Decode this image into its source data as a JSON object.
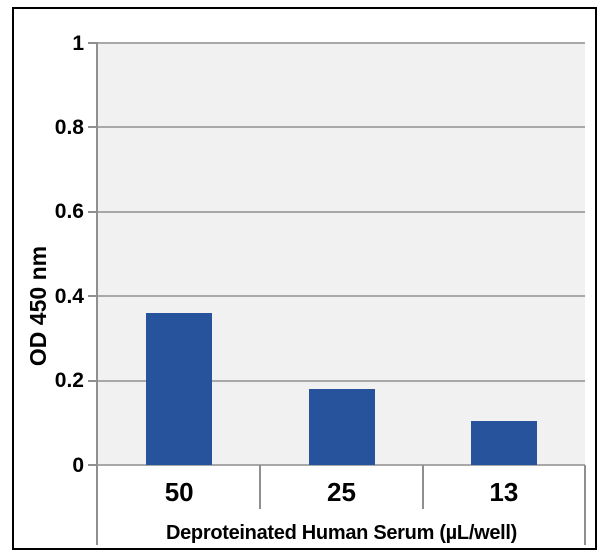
{
  "chart_data": {
    "type": "bar",
    "title": "",
    "categories": [
      "50",
      "25",
      "13"
    ],
    "values": [
      0.36,
      0.18,
      0.105
    ],
    "xlabel": "Deproteinated Human Serum (µL/well)",
    "ylabel": "OD 450 nm",
    "ylim": [
      0,
      1
    ],
    "ytick_interval": 0.2,
    "yticks": [
      "0",
      "0.2",
      "0.4",
      "0.6",
      "0.8",
      "1"
    ],
    "grid": true,
    "legend": false,
    "plot_background": "#f1f1f1"
  },
  "colors": {
    "bar_fill": "#26539c",
    "plot_bg": "#f1f1f1",
    "gridline": "#a8a8a8",
    "axis_line": "#8f8f8f",
    "text": "#000000",
    "frame_border": "#000000",
    "page_bg": "#ffffff"
  }
}
